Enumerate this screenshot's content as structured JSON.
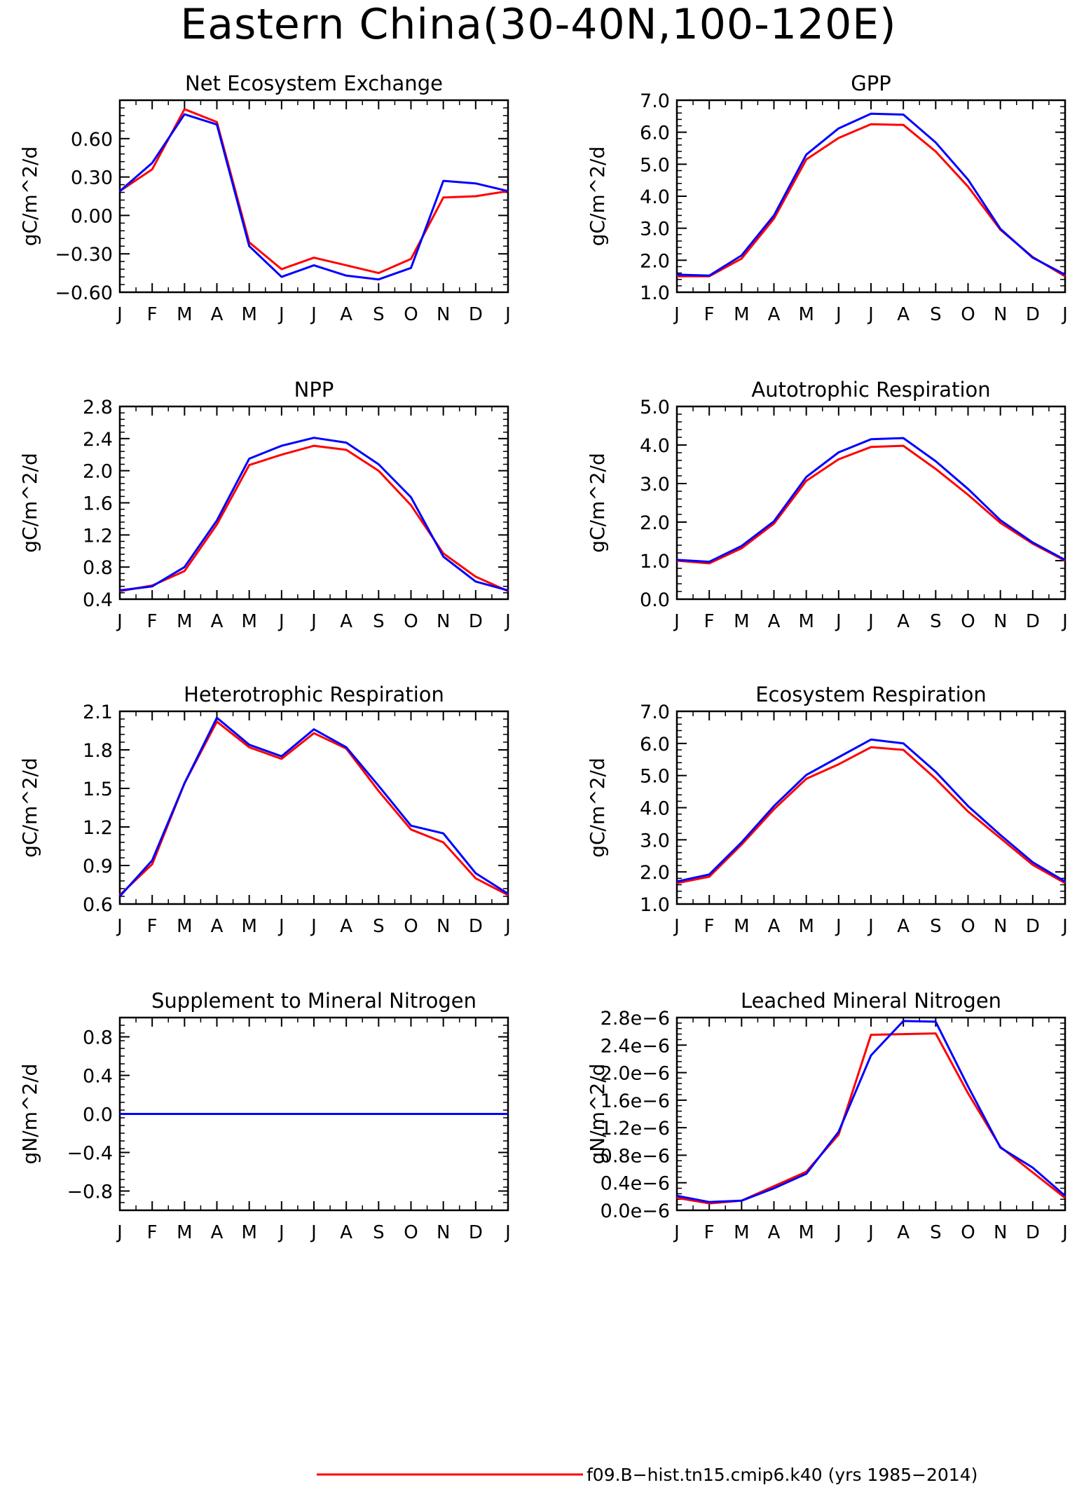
{
  "title": "Eastern China(30-40N,100-120E)",
  "legend": {
    "label": "f09.B-hist.tn15.cmip6.k40 (yrs 1985-2014)",
    "color": "#ff0000"
  },
  "colors": {
    "series_red": "#ff0000",
    "series_blue": "#0000ff"
  },
  "chart_data": [
    {
      "type": "line",
      "title": "Net Ecosystem Exchange",
      "ylabel": "gC/m^2/d",
      "categories": [
        "J",
        "F",
        "M",
        "A",
        "M",
        "J",
        "J",
        "A",
        "S",
        "O",
        "N",
        "D",
        "J"
      ],
      "ylim": [
        -0.6,
        0.9
      ],
      "yticks": [
        -0.6,
        -0.3,
        0.0,
        0.3,
        0.6
      ],
      "ytick_labels": [
        "-0.60",
        "-0.30",
        "0.00",
        "0.30",
        "0.60"
      ],
      "series": [
        {
          "color": "#ff0000",
          "values": [
            0.19,
            0.36,
            0.83,
            0.73,
            -0.21,
            -0.42,
            -0.33,
            -0.39,
            -0.45,
            -0.34,
            0.14,
            0.15,
            0.19
          ]
        },
        {
          "color": "#0000ff",
          "values": [
            0.19,
            0.41,
            0.79,
            0.71,
            -0.24,
            -0.48,
            -0.39,
            -0.47,
            -0.5,
            -0.41,
            0.27,
            0.25,
            0.19
          ]
        }
      ]
    },
    {
      "type": "line",
      "title": "GPP",
      "ylabel": "gC/m^2/d",
      "categories": [
        "J",
        "F",
        "M",
        "A",
        "M",
        "J",
        "J",
        "A",
        "S",
        "O",
        "N",
        "D",
        "J"
      ],
      "ylim": [
        1.0,
        7.0
      ],
      "yticks": [
        1.0,
        2.0,
        3.0,
        4.0,
        5.0,
        6.0,
        7.0
      ],
      "ytick_labels": [
        "1.0",
        "2.0",
        "3.0",
        "4.0",
        "5.0",
        "6.0",
        "7.0"
      ],
      "series": [
        {
          "color": "#ff0000",
          "values": [
            1.5,
            1.5,
            2.05,
            3.3,
            5.15,
            5.82,
            6.25,
            6.23,
            5.4,
            4.3,
            2.95,
            2.1,
            1.5
          ]
        },
        {
          "color": "#0000ff",
          "values": [
            1.55,
            1.52,
            2.15,
            3.4,
            5.3,
            6.12,
            6.58,
            6.55,
            5.68,
            4.52,
            2.98,
            2.08,
            1.55
          ]
        }
      ]
    },
    {
      "type": "line",
      "title": "NPP",
      "ylabel": "gC/m^2/d",
      "categories": [
        "J",
        "F",
        "M",
        "A",
        "M",
        "J",
        "J",
        "A",
        "S",
        "O",
        "N",
        "D",
        "J"
      ],
      "ylim": [
        0.4,
        2.8
      ],
      "yticks": [
        0.4,
        0.8,
        1.2,
        1.6,
        2.0,
        2.4,
        2.8
      ],
      "ytick_labels": [
        "0.4",
        "0.8",
        "1.2",
        "1.6",
        "2.0",
        "2.4",
        "2.8"
      ],
      "series": [
        {
          "color": "#ff0000",
          "values": [
            0.5,
            0.57,
            0.75,
            1.33,
            2.07,
            2.2,
            2.31,
            2.26,
            2.0,
            1.57,
            0.97,
            0.68,
            0.5
          ]
        },
        {
          "color": "#0000ff",
          "values": [
            0.51,
            0.56,
            0.8,
            1.38,
            2.15,
            2.31,
            2.41,
            2.35,
            2.08,
            1.67,
            0.93,
            0.62,
            0.51
          ]
        }
      ]
    },
    {
      "type": "line",
      "title": "Autotrophic Respiration",
      "ylabel": "gC/m^2/d",
      "categories": [
        "J",
        "F",
        "M",
        "A",
        "M",
        "J",
        "J",
        "A",
        "S",
        "O",
        "N",
        "D",
        "J"
      ],
      "ylim": [
        0.0,
        5.0
      ],
      "yticks": [
        0.0,
        1.0,
        2.0,
        3.0,
        4.0,
        5.0
      ],
      "ytick_labels": [
        "0.0",
        "1.0",
        "2.0",
        "3.0",
        "4.0",
        "5.0"
      ],
      "series": [
        {
          "color": "#ff0000",
          "values": [
            1.0,
            0.93,
            1.32,
            1.96,
            3.07,
            3.63,
            3.95,
            3.98,
            3.38,
            2.71,
            1.98,
            1.44,
            1.0
          ]
        },
        {
          "color": "#0000ff",
          "values": [
            1.02,
            0.97,
            1.38,
            2.02,
            3.17,
            3.81,
            4.15,
            4.18,
            3.58,
            2.86,
            2.05,
            1.47,
            1.02
          ]
        }
      ]
    },
    {
      "type": "line",
      "title": "Heterotrophic Respiration",
      "ylabel": "gC/m^2/d",
      "categories": [
        "J",
        "F",
        "M",
        "A",
        "M",
        "J",
        "J",
        "A",
        "S",
        "O",
        "N",
        "D",
        "J"
      ],
      "ylim": [
        0.6,
        2.1
      ],
      "yticks": [
        0.6,
        0.9,
        1.2,
        1.5,
        1.8,
        2.1
      ],
      "ytick_labels": [
        "0.6",
        "0.9",
        "1.2",
        "1.5",
        "1.8",
        "2.1"
      ],
      "series": [
        {
          "color": "#ff0000",
          "values": [
            0.67,
            0.91,
            1.54,
            2.02,
            1.82,
            1.73,
            1.93,
            1.81,
            1.48,
            1.18,
            1.08,
            0.8,
            0.67
          ]
        },
        {
          "color": "#0000ff",
          "values": [
            0.66,
            0.94,
            1.54,
            2.05,
            1.84,
            1.75,
            1.96,
            1.82,
            1.52,
            1.21,
            1.15,
            0.84,
            0.68
          ]
        }
      ]
    },
    {
      "type": "line",
      "title": "Ecosystem Respiration",
      "ylabel": "gC/m^2/d",
      "categories": [
        "J",
        "F",
        "M",
        "A",
        "M",
        "J",
        "J",
        "A",
        "S",
        "O",
        "N",
        "D",
        "J"
      ],
      "ylim": [
        1.0,
        7.0
      ],
      "yticks": [
        1.0,
        2.0,
        3.0,
        4.0,
        5.0,
        6.0,
        7.0
      ],
      "ytick_labels": [
        "1.0",
        "2.0",
        "3.0",
        "4.0",
        "5.0",
        "6.0",
        "7.0"
      ],
      "series": [
        {
          "color": "#ff0000",
          "values": [
            1.65,
            1.85,
            2.85,
            3.95,
            4.9,
            5.35,
            5.88,
            5.8,
            4.9,
            3.88,
            3.05,
            2.22,
            1.65
          ]
        },
        {
          "color": "#0000ff",
          "values": [
            1.7,
            1.92,
            2.92,
            4.05,
            5.02,
            5.57,
            6.12,
            6.0,
            5.12,
            4.05,
            3.15,
            2.3,
            1.7
          ]
        }
      ]
    },
    {
      "type": "line",
      "title": "Supplement to Mineral Nitrogen",
      "ylabel": "gN/m^2/d",
      "categories": [
        "J",
        "F",
        "M",
        "A",
        "M",
        "J",
        "J",
        "A",
        "S",
        "O",
        "N",
        "D",
        "J"
      ],
      "ylim": [
        -1.0,
        1.0
      ],
      "yticks": [
        -0.8,
        -0.4,
        0.0,
        0.4,
        0.8
      ],
      "ytick_labels": [
        "-0.8",
        "-0.4",
        "0.0",
        "0.4",
        "0.8"
      ],
      "series": [
        {
          "color": "#ff0000",
          "values": [
            0,
            0,
            0,
            0,
            0,
            0,
            0,
            0,
            0,
            0,
            0,
            0,
            0
          ]
        },
        {
          "color": "#0000ff",
          "values": [
            0,
            0,
            0,
            0,
            0,
            0,
            0,
            0,
            0,
            0,
            0,
            0,
            0
          ]
        }
      ]
    },
    {
      "type": "line",
      "title": "Leached Mineral Nitrogen",
      "ylabel": "gN/m^2/d",
      "categories": [
        "J",
        "F",
        "M",
        "A",
        "M",
        "J",
        "J",
        "A",
        "S",
        "O",
        "N",
        "D",
        "J"
      ],
      "ylim": [
        0.0,
        2.8
      ],
      "yticks": [
        0.0,
        0.4,
        0.8,
        1.2,
        1.6,
        2.0,
        2.4,
        2.8
      ],
      "ytick_labels": [
        "0.0e-6",
        "0.4e-6",
        "0.8e-6",
        "1.2e-6",
        "1.6e-6",
        "2.0e-6",
        "2.4e-6",
        "2.8e-6"
      ],
      "series": [
        {
          "color": "#ff0000",
          "values": [
            0.18,
            0.1,
            0.14,
            0.35,
            0.56,
            1.1,
            2.55,
            2.56,
            2.57,
            1.7,
            0.92,
            0.55,
            0.18
          ]
        },
        {
          "color": "#0000ff",
          "values": [
            0.21,
            0.12,
            0.14,
            0.32,
            0.53,
            1.14,
            2.25,
            2.75,
            2.74,
            1.8,
            0.91,
            0.62,
            0.21
          ]
        }
      ]
    }
  ]
}
